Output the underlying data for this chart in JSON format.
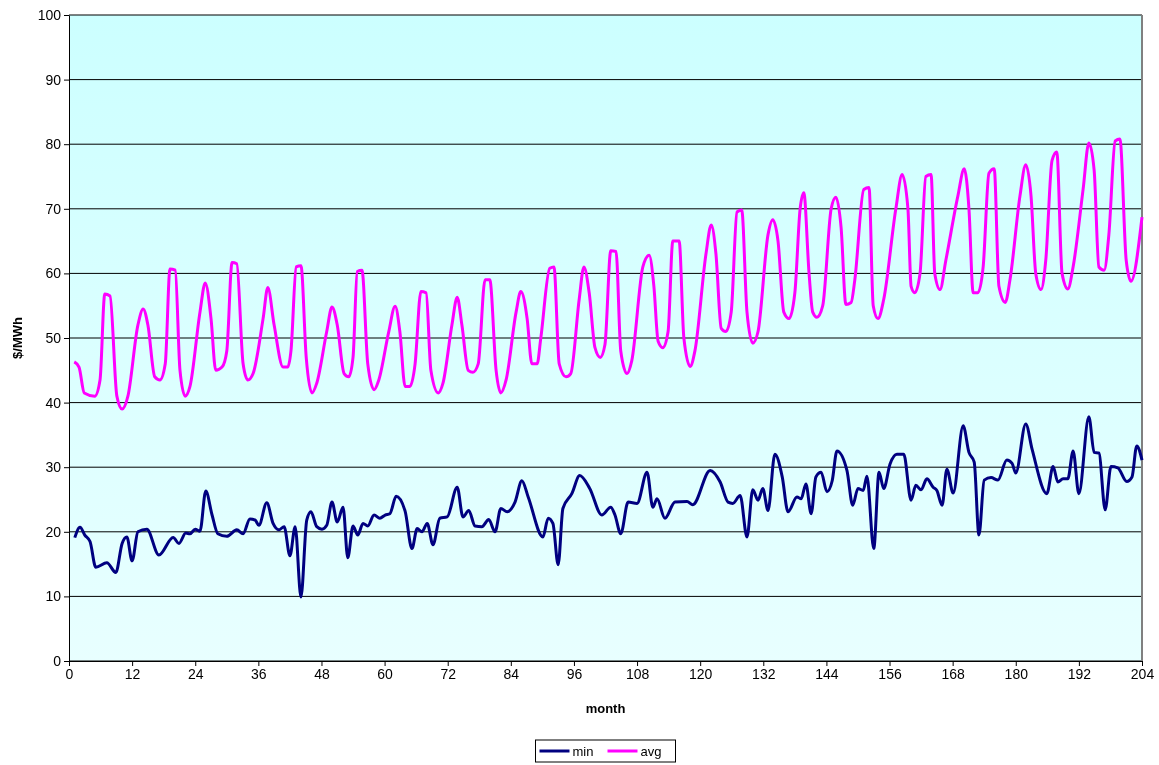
{
  "chart_data": {
    "type": "line",
    "xlabel": "month",
    "ylabel": "$/MWh",
    "xlim": [
      0,
      204
    ],
    "xticks": [
      0,
      12,
      24,
      36,
      48,
      60,
      72,
      84,
      96,
      108,
      120,
      132,
      144,
      156,
      168,
      180,
      192,
      204
    ],
    "ylim": [
      0,
      100
    ],
    "yticks": [
      0,
      10,
      20,
      30,
      40,
      50,
      60,
      70,
      80,
      90,
      100
    ],
    "grid": "y",
    "legend": "bottom",
    "marker": "none",
    "line_style": "solid",
    "series": [
      {
        "name": "min",
        "color": "#000080",
        "x": [
          1.1,
          2.1,
          3.0,
          4.0,
          5.1,
          7.2,
          8.9,
          10.1,
          11.0,
          12.0,
          13.1,
          14.8,
          17.1,
          19.8,
          20.9,
          22.2,
          23.0,
          24.0,
          24.9,
          26.0,
          27.2,
          28.3,
          30.0,
          31.9,
          33.1,
          34.4,
          35.4,
          36.1,
          37.6,
          38.8,
          39.9,
          40.9,
          42.0,
          43.0,
          44.1,
          45.2,
          46.0,
          47.1,
          48.1,
          49.0,
          50.0,
          51.0,
          52.1,
          53.0,
          54.0,
          54.9,
          55.9,
          56.8,
          58.0,
          59.1,
          60.1,
          61.0,
          62.2,
          63.9,
          65.2,
          66.2,
          67.1,
          68.1,
          69.2,
          70.5,
          71.9,
          73.8,
          74.9,
          76.0,
          77.2,
          78.5,
          79.8,
          81.0,
          82.1,
          83.3,
          84.8,
          86.1,
          87.3,
          90.1,
          91.1,
          92.0,
          93.0,
          93.9,
          95.6,
          97.1,
          99.0,
          101.3,
          103.0,
          103.8,
          104.9,
          106.3,
          108.0,
          109.9,
          111.0,
          111.8,
          113.3,
          115.2,
          117.5,
          118.6,
          121.9,
          123.8,
          125.3,
          126.2,
          127.6,
          128.9,
          130.0,
          131.0,
          131.9,
          132.9,
          134.2,
          135.6,
          136.7,
          138.4,
          139.2,
          140.1,
          141.1,
          142.0,
          143.0,
          144.1,
          145.1,
          146.0,
          147.9,
          149.0,
          150.0,
          151.0,
          151.7,
          153.0,
          154.0,
          154.9,
          156.1,
          157.4,
          158.7,
          160.1,
          161.0,
          162.0,
          163.1,
          164.3,
          165.0,
          166.0,
          166.9,
          168.1,
          170.0,
          171.1,
          172.1,
          173.0,
          174.0,
          175.3,
          176.6,
          178.3,
          179.3,
          180.0,
          181.9,
          183.1,
          185.9,
          187.1,
          188.0,
          189.0,
          189.9,
          190.9,
          192.0,
          193.9,
          194.9,
          195.8,
          197.0,
          198.1,
          199.4,
          201.1,
          202.1,
          203.0,
          204.0
        ],
        "values": [
          19.1,
          20.7,
          19.5,
          18.5,
          14.5,
          15.2,
          13.7,
          18.2,
          19.2,
          15.5,
          20,
          20.4,
          16.4,
          19.1,
          18.2,
          19.8,
          19.7,
          20.4,
          20.1,
          26.3,
          22.6,
          19.7,
          19.3,
          20.3,
          19.7,
          22,
          21.8,
          21,
          24.5,
          21.3,
          20.3,
          20.8,
          16.3,
          20.8,
          9.9,
          21.8,
          23.1,
          20.8,
          20.4,
          21,
          24.6,
          21.5,
          23.8,
          16,
          20.9,
          19.5,
          21.3,
          20.9,
          22.6,
          22.1,
          22.6,
          22.8,
          25.5,
          23.2,
          17.4,
          20.5,
          20,
          21.3,
          18,
          22.1,
          22.3,
          26.9,
          22.3,
          23.3,
          20.9,
          20.8,
          21.9,
          20,
          23.6,
          23.1,
          24.6,
          27.9,
          25.4,
          19.2,
          22.1,
          21.3,
          14.9,
          23.6,
          25.9,
          28.7,
          26.7,
          22.6,
          23.8,
          22.6,
          19.7,
          24.6,
          24.4,
          29.2,
          23.8,
          25.1,
          22.1,
          24.6,
          24.7,
          24.2,
          29.5,
          27.7,
          24.6,
          24.4,
          25.6,
          19.2,
          26.5,
          24.9,
          26.7,
          23.3,
          32,
          28.5,
          23.1,
          25.4,
          25.1,
          27.4,
          22.8,
          28.5,
          29.2,
          26.2,
          27.9,
          32.5,
          29.5,
          24.1,
          26.7,
          26.4,
          28.6,
          17.4,
          29.2,
          26.7,
          30.5,
          32,
          32,
          24.9,
          27.2,
          26.5,
          28.2,
          26.9,
          26.4,
          24.1,
          29.7,
          26,
          36.4,
          32.3,
          30.8,
          19.5,
          28,
          28.4,
          28,
          31.1,
          30.6,
          29.1,
          36.7,
          32.8,
          25.9,
          30.1,
          27.7,
          28.2,
          28.2,
          32.5,
          25.9,
          37.8,
          32.3,
          32.2,
          23.4,
          30.1,
          29.9,
          27.8,
          28.5,
          33.3,
          31.1
        ]
      },
      {
        "name": "avg",
        "color": "#ff00ff",
        "x": [
          1.0,
          1.9,
          2.9,
          4.9,
          5.9,
          6.8,
          7.8,
          9.1,
          10.1,
          11.2,
          13.1,
          14.1,
          15.0,
          16.3,
          17.3,
          18.3,
          19.2,
          20.2,
          21.1,
          22.1,
          23.0,
          24.9,
          25.9,
          27.0,
          27.9,
          29.1,
          30.0,
          31.0,
          31.9,
          33.1,
          34.0,
          35.0,
          36.9,
          37.8,
          39.0,
          40.7,
          41.6,
          42.2,
          43.2,
          44.1,
          45.1,
          46.2,
          47.1,
          49.0,
          50.0,
          51.0,
          52.3,
          53.2,
          54.0,
          54.8,
          55.7,
          56.8,
          58.0,
          58.9,
          60.8,
          62.0,
          62.9,
          63.9,
          64.8,
          65.8,
          66.9,
          67.9,
          68.8,
          70.2,
          71.1,
          72.8,
          73.8,
          74.7,
          75.9,
          76.8,
          77.8,
          79.1,
          80.0,
          81.2,
          82.1,
          83.1,
          85.0,
          85.9,
          87.1,
          88.0,
          89.0,
          89.7,
          91.4,
          92.2,
          93.2,
          94.5,
          95.4,
          97.0,
          97.9,
          98.9,
          100.0,
          101.0,
          101.9,
          103.0,
          104.0,
          104.9,
          106.1,
          107.0,
          109.1,
          110.3,
          111.2,
          112.0,
          112.9,
          113.9,
          114.8,
          116.0,
          116.9,
          118.1,
          119.0,
          121.1,
          122.1,
          123.0,
          124.0,
          124.9,
          125.9,
          127.0,
          127.9,
          128.9,
          130.0,
          131.0,
          132.9,
          133.8,
          134.8,
          135.9,
          136.9,
          138.0,
          139.0,
          139.7,
          140.7,
          141.4,
          142.2,
          143.3,
          144.9,
          145.8,
          146.8,
          147.7,
          148.7,
          149.4,
          151.1,
          152.1,
          152.9,
          153.8,
          154.9,
          157.2,
          158.4,
          159.5,
          160.1,
          160.8,
          161.8,
          162.9,
          163.9,
          164.6,
          165.6,
          166.7,
          169.0,
          170.2,
          171.1,
          171.9,
          172.8,
          173.8,
          174.9,
          175.9,
          176.8,
          178.0,
          178.9,
          180.8,
          181.9,
          182.9,
          183.8,
          184.8,
          185.7,
          186.9,
          187.8,
          188.8,
          189.9,
          190.9,
          192.8,
          193.9,
          194.9,
          195.8,
          196.8,
          197.7,
          198.9,
          199.8,
          201.0,
          201.9,
          204.0
        ],
        "values": [
          46.3,
          45.5,
          41.5,
          41,
          43.5,
          56.8,
          56.5,
          41,
          39,
          41,
          52,
          54.5,
          52,
          44,
          43.5,
          46,
          60.7,
          60.5,
          45,
          41,
          42.5,
          54,
          58.5,
          53,
          45,
          45.5,
          48,
          61.7,
          61.5,
          46,
          43.5,
          44.5,
          53,
          57.8,
          52,
          45.5,
          45.5,
          48,
          61,
          61.2,
          47,
          41.5,
          43,
          51,
          54.8,
          52,
          44.5,
          44,
          47,
          60.3,
          60.5,
          46,
          42,
          43.5,
          51,
          54.9,
          51,
          42.5,
          42.5,
          46,
          57.2,
          57,
          45,
          41.5,
          43,
          52,
          56.3,
          52,
          45,
          44.7,
          46,
          59,
          59,
          45,
          41.5,
          43.5,
          54,
          57.2,
          53,
          46,
          46,
          50,
          60.8,
          61,
          46,
          44,
          44.5,
          56,
          61,
          57,
          48.5,
          47,
          49,
          63.5,
          63.4,
          48,
          44.5,
          46.5,
          61,
          62.8,
          58,
          49.5,
          48.5,
          51,
          65,
          65,
          50,
          45.6,
          48,
          63,
          67.5,
          63,
          51.5,
          51,
          54,
          69.5,
          69.8,
          54,
          49.2,
          51,
          66,
          68.3,
          65,
          54,
          53,
          57,
          70,
          72.5,
          60,
          54,
          53.2,
          55,
          70,
          71.8,
          67,
          55.2,
          55.5,
          59,
          73,
          73.3,
          55,
          53,
          56,
          70,
          75.3,
          70,
          58,
          57,
          60,
          75,
          75.3,
          60,
          57.5,
          62,
          72,
          76.2,
          70,
          57,
          57,
          61,
          75.5,
          76.2,
          58,
          55.5,
          59,
          72,
          76.8,
          72,
          60,
          57.5,
          62,
          77.5,
          78.8,
          60,
          57.6,
          61,
          73,
          80.2,
          76,
          61,
          60.5,
          66,
          80.5,
          80.8,
          62,
          58.8,
          68.7
        ]
      }
    ]
  }
}
